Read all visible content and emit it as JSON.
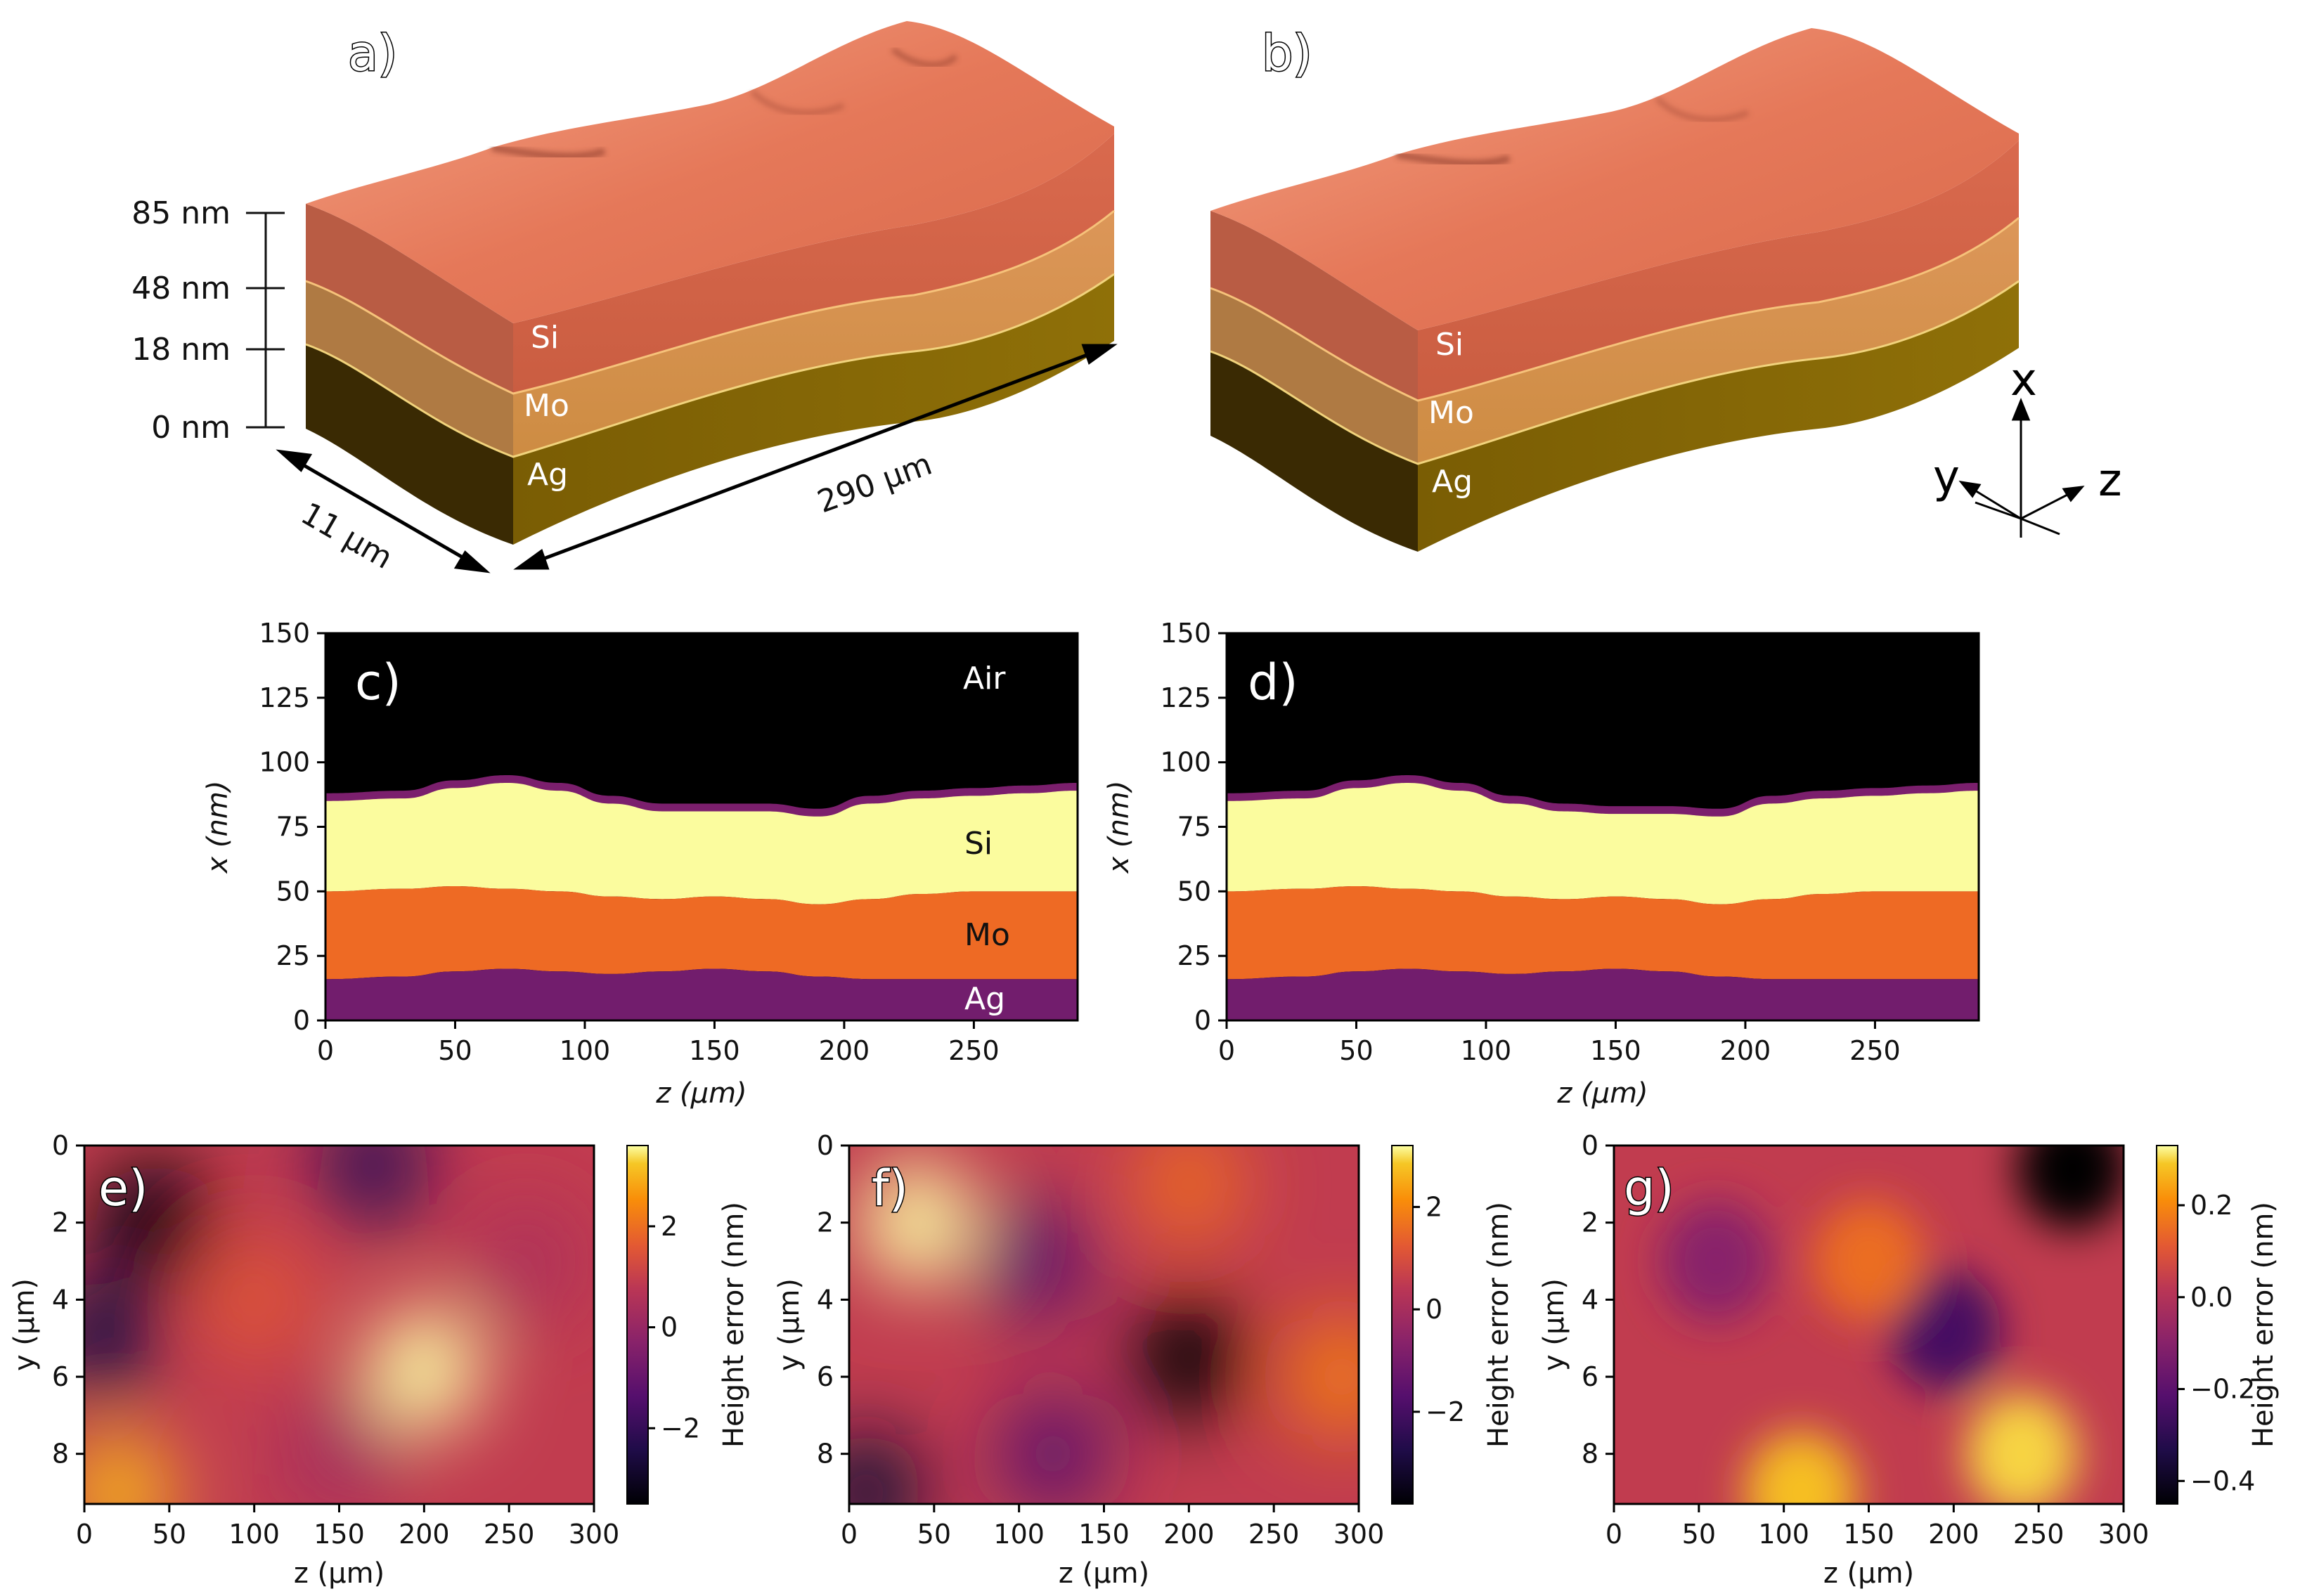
{
  "panels": {
    "a": "a)",
    "b": "b)",
    "c": "c)",
    "d": "d)",
    "e": "e)",
    "f": "f)",
    "g": "g)"
  },
  "stack3d": {
    "heights": [
      "85 nm",
      "48 nm",
      "18 nm",
      "0 nm"
    ],
    "layers": [
      "Si",
      "Mo",
      "Ag"
    ],
    "dims": {
      "width": "11 µm",
      "length": "290 µm"
    },
    "axes": {
      "x": "x",
      "y": "y",
      "z": "z"
    },
    "colors": {
      "si": "#e2714f",
      "mo": "#c98a3d",
      "ag": "#8a6a06"
    }
  },
  "chart_data": [
    {
      "panel": "c",
      "type": "heatmap",
      "xlabel": "z (µm)",
      "ylabel": "x (nm)",
      "xlim": [
        0,
        290
      ],
      "ylim": [
        0,
        150
      ],
      "xticks": [
        0,
        50,
        100,
        150,
        200,
        250
      ],
      "yticks": [
        0,
        25,
        50,
        75,
        100,
        125,
        150
      ],
      "region_labels": [
        "Air",
        "Si",
        "Mo",
        "Ag"
      ],
      "region_colors": {
        "Air": "#000000",
        "Si": "#fbfc9e",
        "Mo": "#ee6a24",
        "Ag": "#721d6d"
      },
      "z": [
        0,
        30,
        50,
        70,
        90,
        110,
        130,
        150,
        170,
        190,
        210,
        230,
        250,
        270,
        290
      ],
      "top_surface": [
        85,
        86,
        90,
        92,
        89,
        84,
        81,
        81,
        81,
        79,
        84,
        86,
        87,
        88,
        89
      ],
      "si_mo_interface": [
        50,
        51,
        52,
        51,
        50,
        48,
        47,
        48,
        47,
        45,
        47,
        49,
        50,
        50,
        50
      ],
      "mo_ag_interface": [
        16,
        17,
        19,
        20,
        19,
        18,
        19,
        20,
        19,
        17,
        16,
        16,
        16,
        16,
        16
      ]
    },
    {
      "panel": "d",
      "type": "heatmap",
      "xlabel": "z (µm)",
      "ylabel": "x (nm)",
      "xlim": [
        0,
        290
      ],
      "ylim": [
        0,
        150
      ],
      "xticks": [
        0,
        50,
        100,
        150,
        200,
        250
      ],
      "yticks": [
        0,
        25,
        50,
        75,
        100,
        125,
        150
      ],
      "z": [
        0,
        30,
        50,
        70,
        90,
        110,
        130,
        150,
        170,
        190,
        210,
        230,
        250,
        270,
        290
      ],
      "top_surface": [
        85,
        86,
        90,
        92,
        89,
        84,
        81,
        80,
        80,
        79,
        84,
        86,
        87,
        88,
        89
      ],
      "si_mo_interface": [
        50,
        51,
        52,
        51,
        50,
        48,
        47,
        48,
        47,
        45,
        47,
        49,
        50,
        50,
        50
      ],
      "mo_ag_interface": [
        16,
        17,
        19,
        20,
        19,
        18,
        19,
        20,
        19,
        17,
        16,
        16,
        16,
        16,
        16
      ]
    },
    {
      "panel": "e",
      "type": "heatmap",
      "xlabel": "z (µm)",
      "ylabel": "y (µm)",
      "xlim": [
        0,
        300
      ],
      "ylim": [
        9.3,
        0
      ],
      "xticks": [
        0,
        50,
        100,
        150,
        200,
        250,
        300
      ],
      "yticks": [
        0,
        2,
        4,
        6,
        8
      ],
      "colorbar": {
        "label": "Height error (nm)",
        "range": [
          -3.5,
          3.6
        ],
        "ticks": [
          "−2",
          "0",
          "2"
        ]
      },
      "blobs": [
        {
          "z": 40,
          "y": 2,
          "value": -3.4
        },
        {
          "z": 10,
          "y": 5,
          "value": -2.5
        },
        {
          "z": 170,
          "y": 0.5,
          "value": -2.0
        },
        {
          "z": 200,
          "y": 5.8,
          "value": 3.6
        },
        {
          "z": 20,
          "y": 9,
          "value": 3.0
        },
        {
          "z": 100,
          "y": 4,
          "value": 1.5
        },
        {
          "z": 260,
          "y": 3,
          "value": 0.5
        },
        {
          "z": 150,
          "y": 8,
          "value": 0.3
        }
      ]
    },
    {
      "panel": "f",
      "type": "heatmap",
      "xlabel": "z (µm)",
      "ylabel": "y (µm)",
      "xlim": [
        0,
        300
      ],
      "ylim": [
        9.3,
        0
      ],
      "xticks": [
        0,
        50,
        100,
        150,
        200,
        250,
        300
      ],
      "yticks": [
        0,
        2,
        4,
        6,
        8
      ],
      "colorbar": {
        "label": "Height error (nm)",
        "range": [
          -3.8,
          3.2
        ],
        "ticks": [
          "−2",
          "0",
          "2"
        ]
      },
      "blobs": [
        {
          "z": 40,
          "y": 2,
          "value": 3.2
        },
        {
          "z": 200,
          "y": 5.5,
          "value": -3.8
        },
        {
          "z": 10,
          "y": 9,
          "value": -3.0
        },
        {
          "z": 200,
          "y": 1,
          "value": 1.5
        },
        {
          "z": 290,
          "y": 6,
          "value": 1.8
        },
        {
          "z": 110,
          "y": 3,
          "value": -1.5
        },
        {
          "z": 120,
          "y": 8,
          "value": -1.5
        }
      ]
    },
    {
      "panel": "g",
      "type": "heatmap",
      "xlabel": "z (µm)",
      "ylabel": "y (µm)",
      "xlim": [
        0,
        300
      ],
      "ylim": [
        9.3,
        0
      ],
      "xticks": [
        0,
        50,
        100,
        150,
        200,
        250,
        300
      ],
      "yticks": [
        0,
        2,
        4,
        6,
        8
      ],
      "colorbar": {
        "label": "Height error (nm)",
        "range": [
          -0.45,
          0.33
        ],
        "ticks": [
          "−0.4",
          "−0.2",
          "0.0",
          "0.2"
        ]
      },
      "blobs": [
        {
          "z": 270,
          "y": 0.6,
          "value": -0.45
        },
        {
          "z": 195,
          "y": 4.8,
          "value": -0.25
        },
        {
          "z": 240,
          "y": 8,
          "value": 0.3
        },
        {
          "z": 110,
          "y": 9,
          "value": 0.28
        },
        {
          "z": 60,
          "y": 3,
          "value": -0.1
        },
        {
          "z": 150,
          "y": 3,
          "value": 0.15
        }
      ]
    }
  ]
}
